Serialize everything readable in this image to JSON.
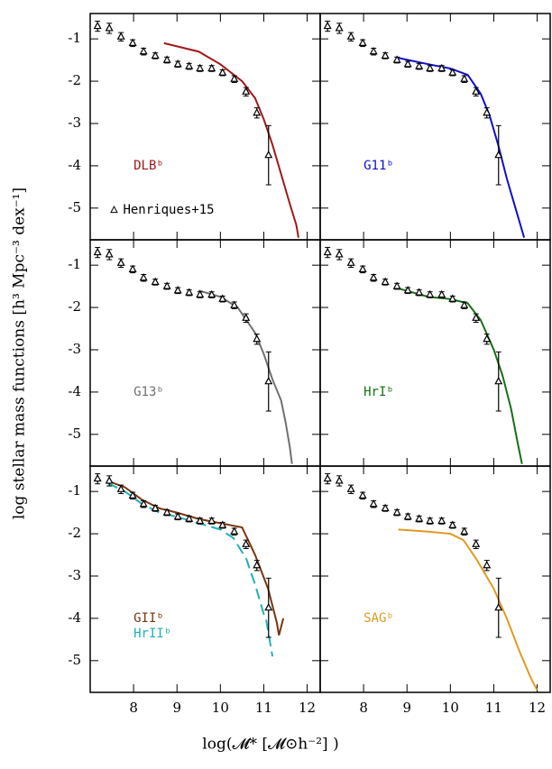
{
  "chart_data": {
    "type": "line",
    "xlabel": "log(𝓜* [𝓜⊙h⁻²] )",
    "ylabel": "log stellar mass functions [h³ Mpc⁻³ dex⁻¹]",
    "xlim": [
      7.0,
      12.3
    ],
    "ylim": [
      -5.75,
      -0.4
    ],
    "xticks": [
      8,
      9,
      10,
      11,
      12
    ],
    "yticks": [
      -1,
      -2,
      -3,
      -4,
      -5
    ],
    "observations": {
      "name": "Henriques+15",
      "color": "#000000",
      "x": [
        7.17,
        7.44,
        7.71,
        7.98,
        8.23,
        8.5,
        8.77,
        9.02,
        9.28,
        9.53,
        9.8,
        10.05,
        10.32,
        10.59,
        10.84,
        11.11
      ],
      "values": [
        -0.7,
        -0.75,
        -0.95,
        -1.1,
        -1.3,
        -1.4,
        -1.5,
        -1.6,
        -1.65,
        -1.7,
        -1.7,
        -1.8,
        -1.95,
        -2.25,
        -2.75,
        -3.75
      ],
      "errors": [
        0.12,
        0.12,
        0.1,
        0.08,
        0.08,
        0.07,
        0.07,
        0.07,
        0.07,
        0.07,
        0.07,
        0.07,
        0.08,
        0.1,
        0.12,
        0.7
      ]
    },
    "panels": [
      {
        "series": [
          {
            "name": "DLBᵇ",
            "color": "#a01818",
            "dash": false,
            "x": [
              8.7,
              9.5,
              10,
              10.5,
              10.8,
              11,
              11.2,
              11.4,
              11.6,
              11.75,
              11.8
            ],
            "values": [
              -1.1,
              -1.3,
              -1.6,
              -2.0,
              -2.4,
              -2.9,
              -3.5,
              -4.2,
              -4.9,
              -5.4,
              -5.7
            ]
          }
        ],
        "legend_obs": true
      },
      {
        "series": [
          {
            "name": "G11ᵇ",
            "color": "#1010d0",
            "dash": false,
            "x": [
              8.8,
              9.5,
              10,
              10.4,
              10.7,
              10.9,
              11.1,
              11.3,
              11.5,
              11.7
            ],
            "values": [
              -1.45,
              -1.6,
              -1.7,
              -1.85,
              -2.3,
              -2.8,
              -3.5,
              -4.3,
              -5.0,
              -5.7
            ]
          }
        ]
      },
      {
        "series": [
          {
            "name": "G13ᵇ",
            "color": "#707070",
            "dash": false,
            "x": [
              9.5,
              10,
              10.4,
              10.8,
              11.0,
              11.2,
              11.4,
              11.5,
              11.6,
              11.65
            ],
            "values": [
              -1.6,
              -1.75,
              -2.0,
              -2.6,
              -3.1,
              -3.7,
              -4.2,
              -4.7,
              -5.3,
              -5.7
            ]
          }
        ]
      },
      {
        "series": [
          {
            "name": "HrIᵇ",
            "color": "#157015",
            "dash": false,
            "x": [
              8.8,
              9.5,
              10,
              10.4,
              10.7,
              11,
              11.2,
              11.4,
              11.55,
              11.65
            ],
            "values": [
              -1.55,
              -1.75,
              -1.8,
              -1.9,
              -2.3,
              -3.0,
              -3.6,
              -4.4,
              -5.2,
              -5.7
            ]
          }
        ]
      },
      {
        "series": [
          {
            "name": "GIIᵇ",
            "color": "#7a3510",
            "dash": false,
            "x": [
              7.4,
              7.8,
              8.2,
              8.6,
              9,
              9.5,
              10,
              10.5,
              10.8,
              11.1,
              11.3,
              11.35,
              11.45
            ],
            "values": [
              -0.75,
              -0.9,
              -1.2,
              -1.4,
              -1.5,
              -1.65,
              -1.75,
              -1.85,
              -2.5,
              -3.3,
              -4.1,
              -4.4,
              -4.0
            ]
          },
          {
            "name": "HrIIᵇ",
            "color": "#20b0b8",
            "dash": true,
            "x": [
              7.4,
              7.8,
              8.2,
              8.6,
              9,
              9.5,
              10,
              10.3,
              10.6,
              10.8,
              11.0,
              11.05,
              11.1,
              11.2
            ],
            "values": [
              -0.8,
              -1.0,
              -1.3,
              -1.5,
              -1.6,
              -1.75,
              -1.9,
              -2.1,
              -2.6,
              -3.2,
              -3.9,
              -4.0,
              -4.3,
              -4.9
            ]
          }
        ]
      },
      {
        "series": [
          {
            "name": "SAGᵇ",
            "color": "#e09a20",
            "dash": false,
            "x": [
              8.8,
              9.5,
              10,
              10.3,
              10.6,
              11,
              11.3,
              11.6,
              11.85,
              12
            ],
            "values": [
              -1.9,
              -1.95,
              -2.0,
              -2.15,
              -2.6,
              -3.3,
              -4.0,
              -4.8,
              -5.4,
              -5.7
            ]
          }
        ]
      }
    ]
  }
}
